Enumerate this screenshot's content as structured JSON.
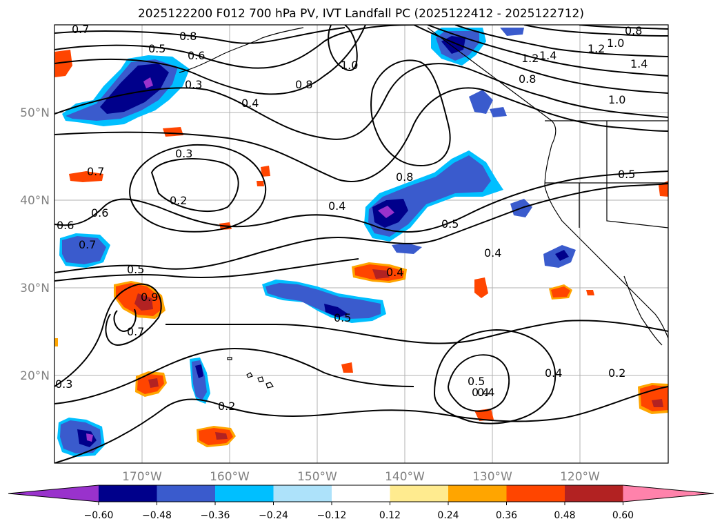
{
  "map": {
    "title": "2025122200 F012 700 hPa PV, IVT Landfall PC (2025122412 - 2025122712)",
    "lat_labels": [
      "50°N",
      "40°N",
      "30°N",
      "20°N"
    ],
    "lon_labels": [
      "170°W",
      "160°W",
      "150°W",
      "140°W",
      "130°W",
      "120°W"
    ],
    "contour_labels": [
      "0.7",
      "0.8",
      "0.5",
      "0.6",
      "0.3",
      "0.4",
      "0.8",
      "1.0",
      "1.2",
      "1.4",
      "0.8",
      "1.2",
      "1.0",
      "1.4",
      "1.0",
      "0.3",
      "0.2",
      "0.7",
      "0.6",
      "0.6",
      "0.7",
      "0.4",
      "0.8",
      "0.5",
      "0.4",
      "0.4",
      "0.5",
      "0.9",
      "0.7",
      "0.5",
      "0.4",
      "0.5",
      "0.4",
      "0.4",
      "0.2",
      "0.3",
      "0.2",
      "0.5",
      "0.8"
    ]
  },
  "colorbar": {
    "tick_labels": [
      "−0.60",
      "−0.48",
      "−0.36",
      "−0.24",
      "−0.12",
      "0.12",
      "0.24",
      "0.36",
      "0.48",
      "0.60"
    ],
    "colors": [
      "#9932CC",
      "#00008B",
      "#3A5BCD",
      "#00BFFF",
      "#ADE2FA",
      "#FFFFFF",
      "#FFEB8F",
      "#FFA500",
      "#FF4500",
      "#B22222",
      "#FF82AB"
    ]
  }
}
